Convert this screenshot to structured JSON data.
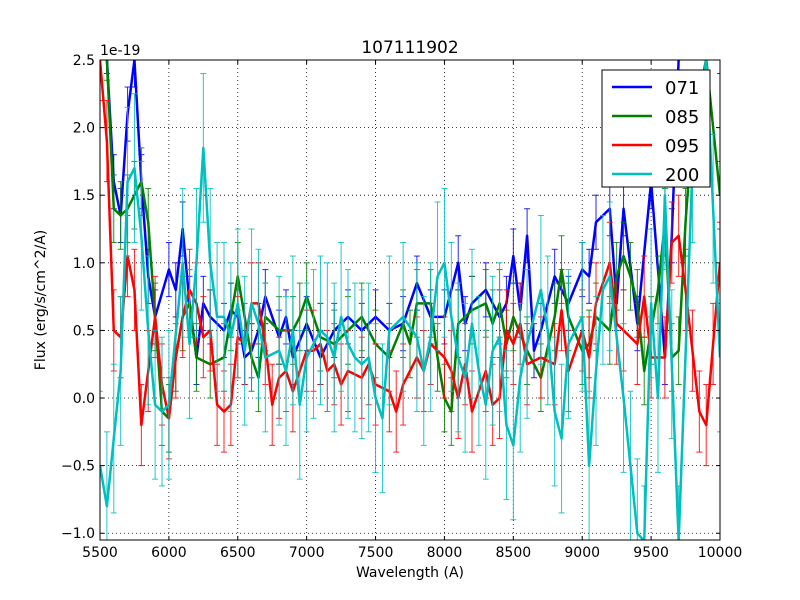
{
  "chart_data": {
    "type": "line",
    "title": "107111902",
    "xlabel": "Wavelength (A)",
    "ylabel": "Flux (erg/s/cm^2/A)",
    "offset_text": "1e-19",
    "xlim": [
      5500,
      10000
    ],
    "ylim": [
      -1.05,
      2.5
    ],
    "xticks": [
      5500,
      6000,
      6500,
      7000,
      7500,
      8000,
      8500,
      9000,
      9500,
      10000
    ],
    "xtick_labels": [
      "5500",
      "6000",
      "6500",
      "7000",
      "7500",
      "8000",
      "8500",
      "9000",
      "9500",
      "10000"
    ],
    "yticks": [
      -1.0,
      -0.5,
      0.0,
      0.5,
      1.0,
      1.5,
      2.0,
      2.5
    ],
    "ytick_labels": [
      "−1.0",
      "−0.5",
      "0.0",
      "0.5",
      "1.0",
      "1.5",
      "2.0",
      "2.5"
    ],
    "grid": true,
    "legend_position": "top-right",
    "series": [
      {
        "name": "071",
        "color": "#0000ff",
        "yerr": 0.2,
        "x": [
          5500,
          5550,
          5600,
          5650,
          5700,
          5750,
          5800,
          5850,
          5900,
          6000,
          6050,
          6100,
          6150,
          6200,
          6250,
          6300,
          6400,
          6450,
          6500,
          6550,
          6600,
          6650,
          6700,
          6800,
          6850,
          6900,
          7000,
          7100,
          7200,
          7300,
          7400,
          7500,
          7600,
          7700,
          7800,
          7900,
          8000,
          8100,
          8150,
          8200,
          8300,
          8400,
          8450,
          8500,
          8550,
          8600,
          8650,
          8700,
          8800,
          8900,
          9000,
          9050,
          9100,
          9200,
          9250,
          9300,
          9400,
          9500,
          9600,
          9650,
          9700,
          9800,
          9900,
          10000
        ],
        "y": [
          3.0,
          2.6,
          1.6,
          1.35,
          2.1,
          2.5,
          1.6,
          0.9,
          0.6,
          0.95,
          0.8,
          1.25,
          0.7,
          0.3,
          0.7,
          0.6,
          0.5,
          0.65,
          0.6,
          0.3,
          0.35,
          0.5,
          0.75,
          0.45,
          0.6,
          0.3,
          0.55,
          0.3,
          0.5,
          0.6,
          0.5,
          0.6,
          0.5,
          0.55,
          0.85,
          0.6,
          0.6,
          1.0,
          0.55,
          0.7,
          0.8,
          0.6,
          0.7,
          1.05,
          0.65,
          1.2,
          0.35,
          0.5,
          0.9,
          0.7,
          0.95,
          0.9,
          1.3,
          1.4,
          0.7,
          1.4,
          0.55,
          1.6,
          0.3,
          1.2,
          2.6,
          2.8,
          2.7,
          2.6
        ]
      },
      {
        "name": "085",
        "color": "#008000",
        "yerr": 0.25,
        "x": [
          5500,
          5550,
          5600,
          5650,
          5700,
          5750,
          5800,
          5850,
          5900,
          5950,
          6000,
          6050,
          6100,
          6150,
          6200,
          6300,
          6400,
          6450,
          6500,
          6600,
          6650,
          6700,
          6800,
          6900,
          6950,
          7000,
          7100,
          7200,
          7300,
          7400,
          7500,
          7600,
          7700,
          7750,
          7800,
          7900,
          7950,
          8000,
          8050,
          8100,
          8200,
          8300,
          8350,
          8400,
          8450,
          8500,
          8600,
          8700,
          8800,
          8850,
          8900,
          9000,
          9050,
          9100,
          9200,
          9250,
          9300,
          9350,
          9400,
          9450,
          9500,
          9550,
          9600,
          9650,
          9700,
          9750,
          9800,
          9900,
          10000
        ],
        "y": [
          3.0,
          2.6,
          1.4,
          1.35,
          1.4,
          1.5,
          1.6,
          1.3,
          0.6,
          -0.1,
          -0.15,
          0.3,
          0.6,
          0.7,
          0.3,
          0.25,
          0.3,
          0.6,
          0.9,
          0.3,
          0.15,
          0.6,
          0.5,
          0.5,
          0.6,
          0.75,
          0.45,
          0.4,
          0.5,
          0.6,
          0.4,
          0.3,
          0.55,
          0.4,
          0.7,
          0.7,
          0.3,
          0.0,
          -0.1,
          0.55,
          0.65,
          0.7,
          0.55,
          0.7,
          0.4,
          0.6,
          0.35,
          0.15,
          0.6,
          0.95,
          0.6,
          0.35,
          0.4,
          0.6,
          0.5,
          0.9,
          1.05,
          0.9,
          0.7,
          0.2,
          0.5,
          0.8,
          1.3,
          0.3,
          0.35,
          1.3,
          2.0,
          2.6,
          1.5
        ]
      },
      {
        "name": "095",
        "color": "#ff0000",
        "yerr": 0.3,
        "x": [
          5500,
          5550,
          5600,
          5650,
          5700,
          5750,
          5800,
          5850,
          5900,
          5950,
          6000,
          6050,
          6100,
          6150,
          6200,
          6250,
          6300,
          6350,
          6400,
          6450,
          6500,
          6550,
          6600,
          6650,
          6700,
          6750,
          6800,
          6850,
          6900,
          7000,
          7050,
          7100,
          7150,
          7200,
          7250,
          7300,
          7400,
          7450,
          7500,
          7600,
          7650,
          7700,
          7800,
          7850,
          7900,
          8000,
          8050,
          8100,
          8150,
          8200,
          8300,
          8350,
          8400,
          8450,
          8500,
          8550,
          8600,
          8700,
          8800,
          8850,
          8900,
          9000,
          9050,
          9100,
          9200,
          9250,
          9300,
          9400,
          9450,
          9500,
          9600,
          9650,
          9700,
          9750,
          9800,
          9850,
          9900,
          9950,
          10000
        ],
        "y": [
          2.5,
          1.9,
          0.5,
          0.45,
          1.05,
          0.8,
          -0.2,
          0.2,
          0.6,
          0.1,
          -0.15,
          0.3,
          0.6,
          0.8,
          0.7,
          0.45,
          0.5,
          -0.05,
          -0.1,
          -0.05,
          0.45,
          0.4,
          0.7,
          0.7,
          0.4,
          -0.05,
          0.15,
          0.2,
          0.05,
          0.35,
          0.35,
          0.4,
          0.2,
          0.25,
          0.1,
          0.2,
          0.15,
          0.25,
          0.1,
          0.05,
          -0.1,
          0.1,
          0.3,
          0.2,
          0.4,
          0.3,
          0.2,
          0.0,
          0.25,
          -0.1,
          0.2,
          -0.05,
          0.0,
          0.5,
          0.4,
          0.55,
          0.25,
          0.3,
          0.25,
          0.65,
          0.2,
          0.5,
          0.3,
          0.7,
          1.0,
          0.55,
          0.5,
          0.4,
          0.75,
          0.3,
          0.3,
          1.15,
          1.2,
          0.8,
          0.35,
          -0.1,
          -0.2,
          0.4,
          1.0
        ]
      },
      {
        "name": "200",
        "color": "#00bfbf",
        "yerr": 0.55,
        "x": [
          5500,
          5550,
          5600,
          5650,
          5700,
          5750,
          5800,
          5850,
          5900,
          5950,
          6000,
          6100,
          6150,
          6200,
          6250,
          6300,
          6350,
          6400,
          6450,
          6500,
          6550,
          6600,
          6650,
          6700,
          6800,
          6850,
          6900,
          6950,
          7000,
          7050,
          7100,
          7150,
          7200,
          7250,
          7300,
          7350,
          7400,
          7450,
          7500,
          7550,
          7600,
          7700,
          7800,
          7850,
          7900,
          7950,
          8000,
          8050,
          8100,
          8150,
          8200,
          8250,
          8300,
          8350,
          8400,
          8450,
          8500,
          8550,
          8600,
          8700,
          8750,
          8800,
          8850,
          8900,
          9000,
          9050,
          9100,
          9150,
          9200,
          9300,
          9350,
          9400,
          9450,
          9500,
          9550,
          9600,
          9650,
          9700,
          9800,
          9900,
          9950,
          10000
        ],
        "y": [
          -0.5,
          -0.8,
          -0.3,
          0.2,
          1.6,
          1.7,
          1.2,
          0.5,
          -0.05,
          -0.1,
          -0.05,
          1.0,
          0.4,
          1.0,
          1.85,
          1.0,
          0.6,
          0.6,
          0.45,
          0.7,
          0.35,
          0.7,
          0.55,
          0.3,
          0.35,
          0.2,
          0.5,
          -0.05,
          0.3,
          0.4,
          0.5,
          0.45,
          0.3,
          0.6,
          0.4,
          0.3,
          0.25,
          0.3,
          0.0,
          -0.15,
          0.5,
          0.6,
          0.45,
          0.2,
          0.45,
          0.9,
          1.0,
          0.6,
          0.3,
          0.15,
          0.55,
          0.2,
          -0.05,
          0.35,
          0.45,
          -0.2,
          -0.35,
          0.15,
          0.4,
          0.8,
          0.5,
          -0.1,
          -0.3,
          0.4,
          0.6,
          -0.5,
          0.2,
          0.8,
          0.9,
          0.0,
          -0.5,
          -1.0,
          -1.2,
          0.7,
          0.0,
          1.5,
          0.25,
          -1.2,
          1.7,
          2.6,
          1.4,
          0.3
        ]
      }
    ]
  }
}
